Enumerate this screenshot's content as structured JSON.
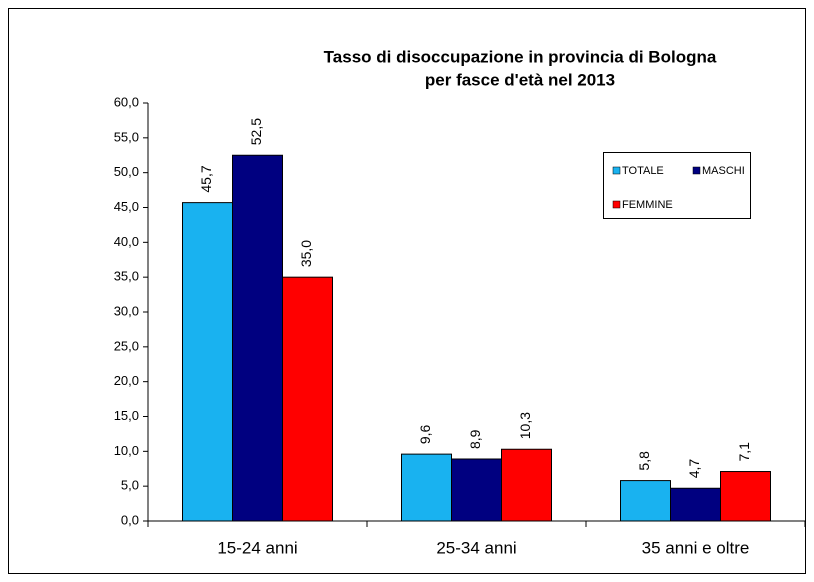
{
  "chart_data": {
    "type": "bar",
    "title": "Tasso di disoccupazione in provincia di Bologna",
    "subtitle": "per fasce d'età nel 2013",
    "categories": [
      "15-24 anni",
      "25-34 anni",
      "35 anni e oltre"
    ],
    "series": [
      {
        "name": "TOTALE",
        "color": "#19b2f0",
        "values": [
          45.7,
          9.6,
          5.8
        ],
        "value_labels": [
          "45,7",
          "9,6",
          "5,8"
        ]
      },
      {
        "name": "MASCHI",
        "color": "#000080",
        "values": [
          52.5,
          8.9,
          4.7
        ],
        "value_labels": [
          "52,5",
          "8,9",
          "4,7"
        ]
      },
      {
        "name": "FEMMINE",
        "color": "#ff0000",
        "values": [
          35.0,
          10.3,
          7.1
        ],
        "value_labels": [
          "35,0",
          "10,3",
          "7,1"
        ]
      }
    ],
    "ylim": [
      0,
      60
    ],
    "yticks": [
      {
        "value": 0,
        "label": "0,0"
      },
      {
        "value": 5,
        "label": "5,0"
      },
      {
        "value": 10,
        "label": "10,0"
      },
      {
        "value": 15,
        "label": "15,0"
      },
      {
        "value": 20,
        "label": "20,0"
      },
      {
        "value": 25,
        "label": "25,0"
      },
      {
        "value": 30,
        "label": "30,0"
      },
      {
        "value": 35,
        "label": "35,0"
      },
      {
        "value": 40,
        "label": "40,0"
      },
      {
        "value": 45,
        "label": "45,0"
      },
      {
        "value": 50,
        "label": "50,0"
      },
      {
        "value": 55,
        "label": "55,0"
      },
      {
        "value": 60,
        "label": "60,0"
      }
    ],
    "grid": false,
    "legend": "upper right"
  }
}
